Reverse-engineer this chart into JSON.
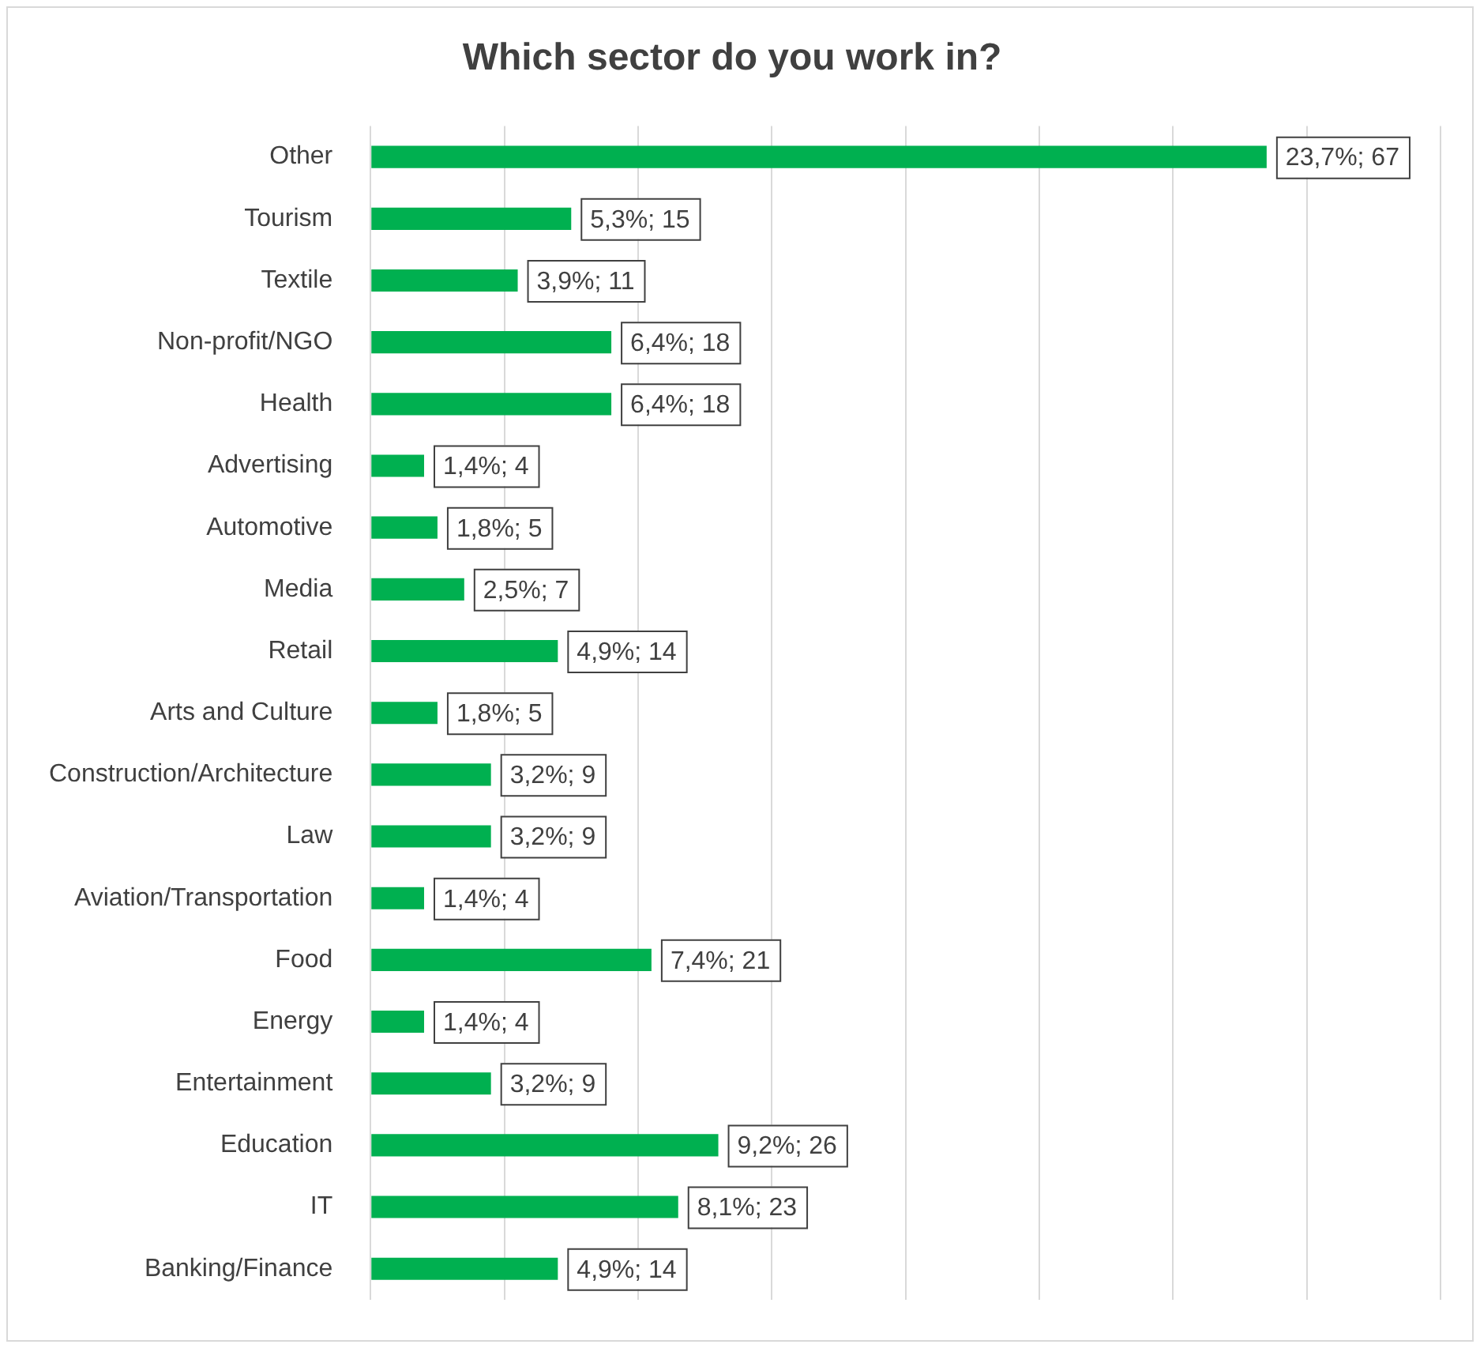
{
  "chart_data": {
    "type": "bar",
    "orientation": "horizontal",
    "title": "Which sector do you work in?",
    "categories": [
      "Other",
      "Tourism",
      "Textile",
      "Non-profit/NGO",
      "Health",
      "Advertising",
      "Automotive",
      "Media",
      "Retail",
      "Arts and Culture",
      "Construction/Architecture",
      "Law",
      "Aviation/Transportation",
      "Food",
      "Energy",
      "Entertainment",
      "Education",
      "IT",
      "Banking/Finance"
    ],
    "values": [
      67,
      15,
      11,
      18,
      18,
      4,
      5,
      7,
      14,
      5,
      9,
      9,
      4,
      21,
      4,
      9,
      26,
      23,
      14
    ],
    "value_labels": [
      "23,7%; 67",
      "5,3%; 15",
      "3,9%; 11",
      "6,4%; 18",
      "6,4%; 18",
      "1,4%; 4",
      "1,8%; 5",
      "2,5%; 7",
      "4,9%; 14",
      "1,8%; 5",
      "3,2%; 9",
      "3,2%; 9",
      "1,4%; 4",
      "7,4%; 21",
      "1,4%; 4",
      "3,2%; 9",
      "9,2%; 26",
      "8,1%; 23",
      "4,9%; 14"
    ],
    "color": "#00b050",
    "xlim": [
      0,
      80
    ],
    "xticks": [
      {
        "value": 0,
        "label": null
      },
      {
        "value": 10,
        "label": null
      },
      {
        "value": 20,
        "label": null
      },
      {
        "value": 30,
        "label": null
      },
      {
        "value": 40,
        "label": null
      },
      {
        "value": 50,
        "label": null
      },
      {
        "value": 60,
        "label": null
      },
      {
        "value": 70,
        "label": null
      },
      {
        "value": 80,
        "label": null
      }
    ],
    "grid": "x",
    "tick_labels": "y",
    "legend": false
  }
}
